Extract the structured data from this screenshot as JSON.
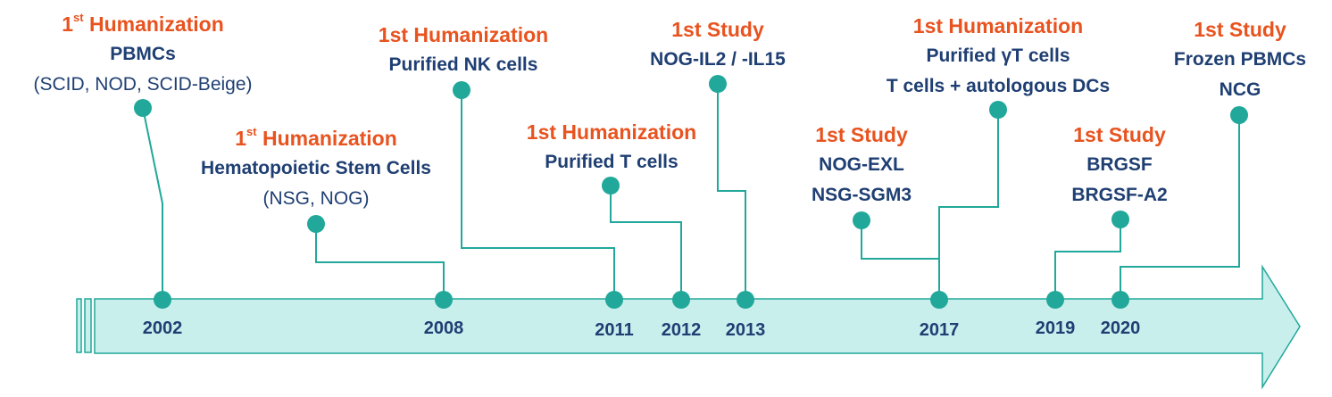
{
  "timeline": {
    "years": [
      "2002",
      "2008",
      "2011",
      "2012",
      "2013",
      "2017",
      "2019",
      "2020"
    ],
    "colors": {
      "accent": "#e8531f",
      "text": "#1f3f73",
      "line": "#21a89a",
      "arrow_fill": "#c9efed"
    }
  },
  "milestones": {
    "m2002": {
      "ord": "1",
      "sup": "st",
      "rest": "Humanization",
      "l1": "PBMCs",
      "l2": "(SCID, NOD, SCID-Beige)"
    },
    "m2008": {
      "ord": "1",
      "sup": "st",
      "rest": "Humanization",
      "l1": "Hematopoietic Stem Cells",
      "l2": "(NSG, NOG)"
    },
    "m2011": {
      "head": "1st Humanization",
      "l1": "Purified NK cells"
    },
    "m2012": {
      "head": "1st Humanization",
      "l1": "Purified T cells"
    },
    "m2013": {
      "head": "1st Study",
      "l1": "NOG-IL2 / -IL15"
    },
    "m2017a": {
      "head": "1st Study",
      "l1": "NOG-EXL",
      "l2": "NSG-SGM3"
    },
    "m2017b": {
      "head": "1st Humanization",
      "l1": "Purified γT cells",
      "l2": "T cells + autologous DCs"
    },
    "m2019": {
      "head": "1st Study",
      "l1": "BRGSF",
      "l2": "BRGSF-A2"
    },
    "m2020": {
      "head": "1st Study",
      "l1": "Frozen PBMCs",
      "l2": "NCG"
    }
  }
}
